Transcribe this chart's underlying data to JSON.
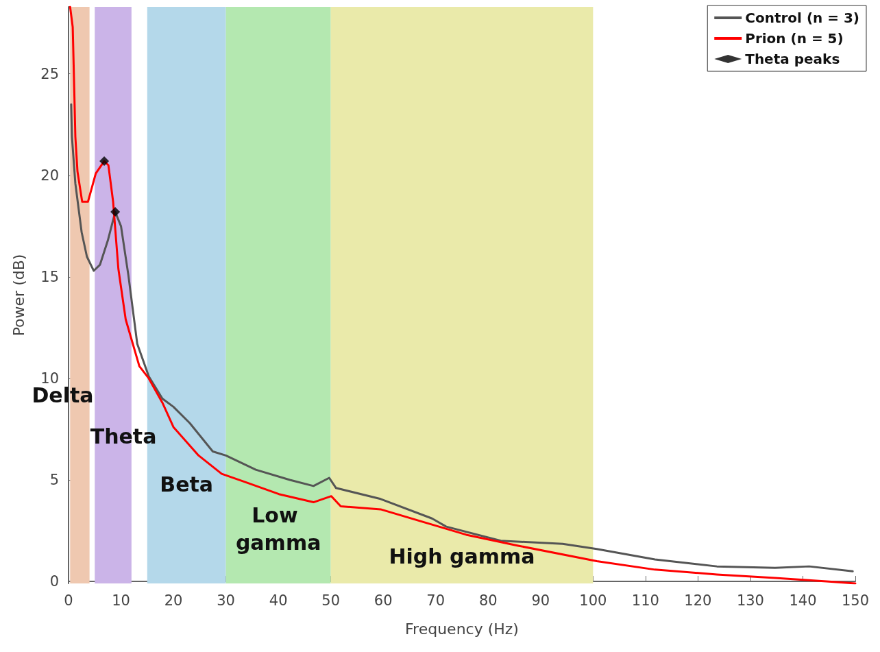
{
  "chart_data": {
    "type": "line",
    "xlabel": "Frequency (Hz)",
    "ylabel": "Power (dB)",
    "xlim": [
      0,
      150
    ],
    "xticks": [
      0,
      10,
      20,
      30,
      40,
      50,
      60,
      70,
      80,
      90,
      100,
      110,
      120,
      130,
      140,
      150
    ],
    "ylim": [
      -0.1,
      28.3
    ],
    "yticks": [
      0,
      5,
      10,
      15,
      20,
      25
    ],
    "grid": false,
    "legend": "top right",
    "marker": "none",
    "line_style": "solid",
    "series": [
      {
        "name": "Control (n = 3)",
        "color": "#555555",
        "x": [
          0.5,
          0.65,
          1.3,
          2.5,
          3.5,
          4.8,
          6,
          7.5,
          8.9,
          10,
          11.4,
          13.1,
          15.3,
          17.9,
          20,
          23.1,
          27.5,
          30,
          35.7,
          42.2,
          46.7,
          49.7,
          51,
          59.5,
          69.3,
          72,
          82.4,
          94.2,
          100.7,
          111.8,
          123.6,
          134.7,
          141.2,
          149.5
        ],
        "values": [
          23.5,
          21.9,
          19.6,
          17.2,
          16,
          15.3,
          15.6,
          16.8,
          18.2,
          17.5,
          15.1,
          11.7,
          10.1,
          9.0,
          8.6,
          7.8,
          6.4,
          6.2,
          5.5,
          5.0,
          4.7,
          5.1,
          4.6,
          4.06,
          3.1,
          2.7,
          2.0,
          1.85,
          1.6,
          1.08,
          0.74,
          0.67,
          0.74,
          0.5
        ]
      },
      {
        "name": "Prion (n = 5)",
        "color": "#ff0000",
        "x": [
          0.3,
          0.8,
          1.1,
          1.3,
          1.7,
          2.6,
          3.7,
          5.2,
          6.8,
          7.6,
          8.5,
          9.5,
          10.9,
          13.5,
          15.3,
          17.9,
          20,
          24.8,
          29.2,
          33.6,
          40.1,
          46.7,
          50.1,
          51.9,
          59.5,
          69.3,
          75.8,
          85.7,
          100.7,
          111.8,
          123.6,
          134.7,
          144.5,
          150
        ],
        "values": [
          28.3,
          27.3,
          24.1,
          21.9,
          20.2,
          18.7,
          18.7,
          20.1,
          20.7,
          20.5,
          18.7,
          15.4,
          12.9,
          10.6,
          10.0,
          8.8,
          7.6,
          6.2,
          5.3,
          4.9,
          4.3,
          3.9,
          4.2,
          3.7,
          3.55,
          2.8,
          2.3,
          1.76,
          1.0,
          0.58,
          0.34,
          0.17,
          0,
          -0.1
        ]
      },
      {
        "name": "Theta peaks",
        "type": "scatter",
        "marker": "diamond",
        "color": "#000000",
        "x": [
          6.8,
          8.9
        ],
        "values": [
          20.7,
          18.2
        ]
      }
    ],
    "bands": [
      {
        "axis": "x",
        "from": 0.3,
        "to": 4,
        "label": "Delta",
        "color": "#efc8b0"
      },
      {
        "axis": "x",
        "from": 5,
        "to": 12,
        "label": "Theta",
        "color": "#cbb4e8"
      },
      {
        "axis": "x",
        "from": 15,
        "to": 30,
        "label": "Beta",
        "color": "#b4d8ea"
      },
      {
        "axis": "x",
        "from": 30,
        "to": 50,
        "label": "Low gamma",
        "color": "#b4e8b0"
      },
      {
        "axis": "x",
        "from": 50,
        "to": 100,
        "label": "High gamma",
        "color": "#eaeaaa"
      }
    ]
  }
}
